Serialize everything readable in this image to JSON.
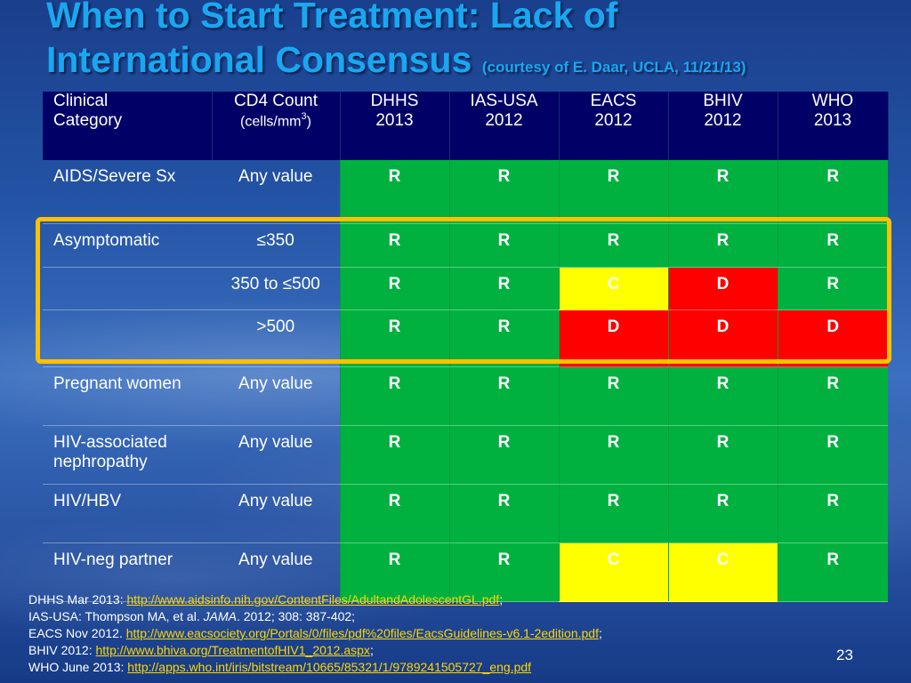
{
  "title": {
    "line1": "When to Start Treatment: Lack of",
    "line2": "International Consensus",
    "courtesy": "(courtesy of E. Daar, UCLA, 11/21/13)"
  },
  "table": {
    "headers": {
      "category": [
        "Clinical",
        "Category"
      ],
      "cd4": "CD4 Count",
      "cd4_unit": "(cells/mm",
      "cd4_unit_sup": "3",
      "cd4_unit_close": ")",
      "guidelines": [
        {
          "name": "DHHS",
          "year": "2013"
        },
        {
          "name": "IAS-USA",
          "year": "2012"
        },
        {
          "name": "EACS",
          "year": "2012"
        },
        {
          "name": "BHIV",
          "year": "2012"
        },
        {
          "name": "WHO",
          "year": "2013"
        }
      ]
    },
    "rows": [
      {
        "category": "AIDS/Severe Sx",
        "cd4": "Any value",
        "values": [
          "R",
          "R",
          "R",
          "R",
          "R"
        ]
      },
      {
        "category": "Asymptomatic",
        "cd4": "≤350",
        "values": [
          "R",
          "R",
          "R",
          "R",
          "R"
        ]
      },
      {
        "category": "",
        "cd4": "350 to ≤500",
        "values": [
          "R",
          "R",
          "C",
          "D",
          "R"
        ]
      },
      {
        "category": "",
        "cd4": ">500",
        "values": [
          "R",
          "R",
          "D",
          "D",
          "D"
        ]
      },
      {
        "category": "Pregnant women",
        "cd4": "Any value",
        "values": [
          "R",
          "R",
          "R",
          "R",
          "R"
        ]
      },
      {
        "category": "HIV-associated nephropathy",
        "cd4": "Any value",
        "values": [
          "R",
          "R",
          "R",
          "R",
          "R"
        ]
      },
      {
        "category": "HIV/HBV",
        "cd4": "Any value",
        "values": [
          "R",
          "R",
          "R",
          "R",
          "R"
        ]
      },
      {
        "category": "HIV-neg partner",
        "cd4": "Any value",
        "values": [
          "R",
          "R",
          "C",
          "C",
          "R"
        ]
      }
    ],
    "colors": {
      "R": "#00b140",
      "C": "#ffff00",
      "D": "#ff0000",
      "header": "#000066",
      "highlight": "#ffc000"
    }
  },
  "references": [
    {
      "prefix": "DHHS Mar 2013: ",
      "link": "http://www.aidsinfo.nih.gov/ContentFiles/AdultandAdolescentGL.pdf",
      "suffix": ";"
    },
    {
      "prefix": "IAS-USA: Thompson MA, et al. ",
      "journal": "JAMA",
      "suffix": ". 2012; 308: 387-402;"
    },
    {
      "prefix": "EACS Nov 2012. ",
      "link": "http://www.eacsociety.org/Portals/0/files/pdf%20files/EacsGuidelines-v6.1-2edition.pdf",
      "suffix": ";"
    },
    {
      "prefix": "BHIV 2012: ",
      "link": "http://www.bhiva.org/TreatmentofHIV1_2012.aspx",
      "suffix": ";"
    },
    {
      "prefix": "WHO June 2013: ",
      "link": "http://apps.who.int/iris/bitstream/10665/85321/1/9789241505727_eng.pdf",
      "suffix": ""
    }
  ],
  "page_number": "23"
}
